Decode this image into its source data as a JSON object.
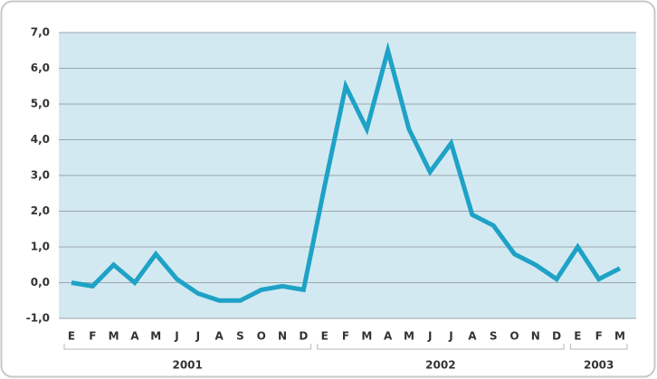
{
  "chart_data": {
    "type": "line",
    "groups": [
      {
        "label": "2001",
        "categories": [
          "E",
          "F",
          "M",
          "A",
          "M",
          "J",
          "J",
          "A",
          "S",
          "O",
          "N",
          "D"
        ]
      },
      {
        "label": "2002",
        "categories": [
          "E",
          "F",
          "M",
          "A",
          "M",
          "J",
          "J",
          "A",
          "S",
          "O",
          "N",
          "D"
        ]
      },
      {
        "label": "2003",
        "categories": [
          "E",
          "F",
          "M"
        ]
      }
    ],
    "series": [
      {
        "color": "#1ea2c6",
        "values": [
          0.0,
          -0.1,
          0.5,
          0.0,
          0.8,
          0.1,
          -0.3,
          -0.5,
          -0.5,
          -0.2,
          -0.1,
          -0.2,
          2.7,
          5.5,
          4.3,
          6.5,
          4.3,
          3.1,
          3.9,
          1.9,
          1.6,
          0.8,
          0.5,
          0.1,
          1.0,
          0.1,
          0.4
        ]
      }
    ],
    "ylim": [
      -1,
      7
    ],
    "yticks": [
      {
        "value": -1,
        "label": "-1,0"
      },
      {
        "value": 0,
        "label": "0,0"
      },
      {
        "value": 1,
        "label": "1,0"
      },
      {
        "value": 2,
        "label": "2,0"
      },
      {
        "value": 3,
        "label": "3,0"
      },
      {
        "value": 4,
        "label": "4,0"
      },
      {
        "value": 5,
        "label": "5,0"
      },
      {
        "value": 6,
        "label": "6,0"
      },
      {
        "value": 7,
        "label": "7,0"
      }
    ],
    "grid": true
  }
}
